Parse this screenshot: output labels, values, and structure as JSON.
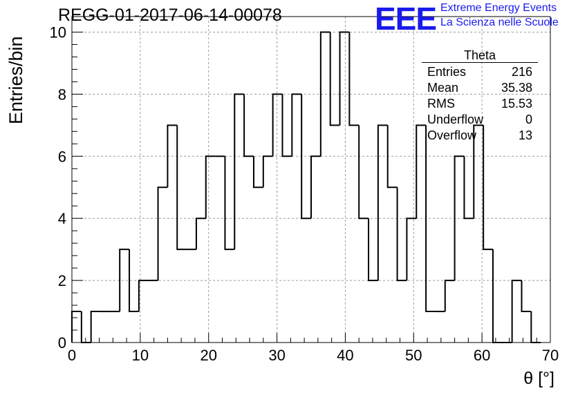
{
  "title": "REGG-01-2017-06-14-00078",
  "logo": {
    "mark": "EEE",
    "line1": "Extreme Energy Events",
    "line2": "La Scienza nelle Scuole",
    "color": "#1a1aee"
  },
  "stats_box": {
    "title": "Theta",
    "rows": [
      {
        "label": "Entries",
        "value": "216"
      },
      {
        "label": "Mean",
        "value": "35.38"
      },
      {
        "label": "RMS",
        "value": "15.53"
      },
      {
        "label": "Underflow",
        "value": "0"
      },
      {
        "label": "Overflow",
        "value": "13"
      }
    ]
  },
  "chart_data": {
    "type": "bar",
    "subtype": "histogram-step",
    "title": "REGG-01-2017-06-14-00078",
    "xlabel": "θ [°]",
    "ylabel": "Entries/bin",
    "xlim": [
      0,
      70
    ],
    "ylim": [
      0,
      10.5
    ],
    "bin_width": 1.4,
    "x_ticks": [
      0,
      10,
      20,
      30,
      40,
      50,
      60,
      70
    ],
    "y_ticks": [
      0,
      2,
      4,
      6,
      8,
      10
    ],
    "grid": true,
    "values": [
      1,
      0,
      1,
      1,
      1,
      3,
      1,
      2,
      2,
      5,
      7,
      3,
      3,
      4,
      6,
      6,
      3,
      8,
      6,
      5,
      6,
      8,
      6,
      8,
      4,
      6,
      10,
      7,
      10,
      7,
      4,
      2,
      7,
      5,
      2,
      4,
      7,
      1,
      1,
      2,
      6,
      4,
      7,
      3,
      0,
      0,
      2,
      1,
      0
    ]
  }
}
